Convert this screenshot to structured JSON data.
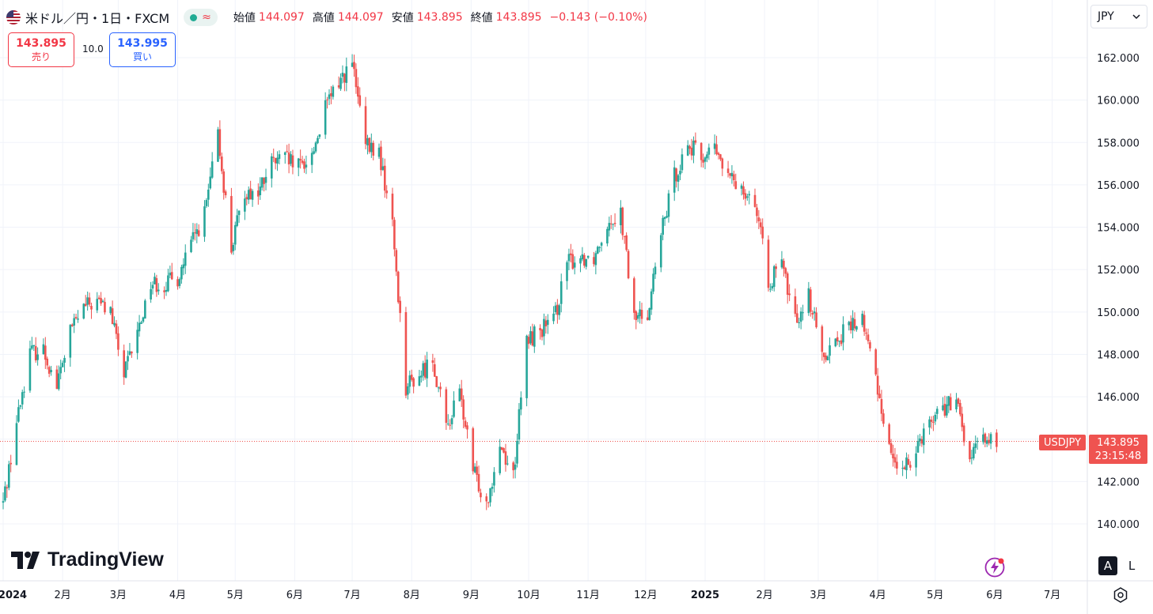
{
  "header": {
    "symbol_title": "米ドル／円・1日・FXCM",
    "live_icon": "green-dot",
    "wave_icon": "≈",
    "ohlc": {
      "open_label": "始値",
      "open": "144.097",
      "high_label": "高値",
      "high": "144.097",
      "low_label": "安値",
      "low": "143.895",
      "close_label": "終値",
      "close": "143.895",
      "change": "−0.143 (−0.10%)"
    }
  },
  "trade": {
    "sell_price": "143.895",
    "sell_label": "売り",
    "spread": "10.0",
    "buy_price": "143.995",
    "buy_label": "買い"
  },
  "currency_select": {
    "value": "JPY"
  },
  "last_price_tag": {
    "symbol": "USDJPY",
    "price": "143.895",
    "countdown": "23:15:48"
  },
  "branding": {
    "logo_text": "TradingView"
  },
  "controls": {
    "auto_scale": "A",
    "log_scale": "L"
  },
  "colors": {
    "up": "#26a69a",
    "down": "#ef5350",
    "grid": "#f0f3fa",
    "text": "#131722"
  },
  "chart_data": {
    "type": "candlestick",
    "y_ticks": [
      "162.000",
      "160.000",
      "158.000",
      "156.000",
      "154.000",
      "152.000",
      "150.000",
      "148.000",
      "146.000",
      "144.000",
      "142.000",
      "140.000"
    ],
    "y_range": [
      139.0,
      163.2
    ],
    "x_ticks": [
      {
        "label": "2024",
        "bold": true
      },
      {
        "label": "2月"
      },
      {
        "label": "3月"
      },
      {
        "label": "4月"
      },
      {
        "label": "5月"
      },
      {
        "label": "6月"
      },
      {
        "label": "7月"
      },
      {
        "label": "8月"
      },
      {
        "label": "9月"
      },
      {
        "label": "10月"
      },
      {
        "label": "11月"
      },
      {
        "label": "12月"
      },
      {
        "label": "2025",
        "bold": true
      },
      {
        "label": "2月"
      },
      {
        "label": "3月"
      },
      {
        "label": "4月"
      },
      {
        "label": "5月"
      },
      {
        "label": "6月"
      },
      {
        "label": "7月"
      }
    ],
    "close_series": [
      {
        "date": "2024-01-01",
        "close": 141.0
      },
      {
        "date": "2024-01-08",
        "close": 144.8
      },
      {
        "date": "2024-01-15",
        "close": 148.1
      },
      {
        "date": "2024-01-22",
        "close": 148.2
      },
      {
        "date": "2024-01-29",
        "close": 146.5
      },
      {
        "date": "2024-02-05",
        "close": 149.1
      },
      {
        "date": "2024-02-12",
        "close": 150.2
      },
      {
        "date": "2024-02-19",
        "close": 150.5
      },
      {
        "date": "2024-02-26",
        "close": 150.0
      },
      {
        "date": "2024-03-04",
        "close": 147.0
      },
      {
        "date": "2024-03-11",
        "close": 149.0
      },
      {
        "date": "2024-03-18",
        "close": 151.4
      },
      {
        "date": "2024-03-25",
        "close": 151.3
      },
      {
        "date": "2024-04-01",
        "close": 151.6
      },
      {
        "date": "2024-04-08",
        "close": 153.2
      },
      {
        "date": "2024-04-15",
        "close": 154.6
      },
      {
        "date": "2024-04-22",
        "close": 158.3
      },
      {
        "date": "2024-04-29",
        "close": 153.0
      },
      {
        "date": "2024-05-06",
        "close": 155.7
      },
      {
        "date": "2024-05-13",
        "close": 155.6
      },
      {
        "date": "2024-05-20",
        "close": 157.0
      },
      {
        "date": "2024-05-27",
        "close": 157.2
      },
      {
        "date": "2024-06-03",
        "close": 156.8
      },
      {
        "date": "2024-06-10",
        "close": 157.4
      },
      {
        "date": "2024-06-17",
        "close": 159.6
      },
      {
        "date": "2024-06-24",
        "close": 160.9
      },
      {
        "date": "2024-07-01",
        "close": 161.7
      },
      {
        "date": "2024-07-08",
        "close": 157.8
      },
      {
        "date": "2024-07-15",
        "close": 157.5
      },
      {
        "date": "2024-07-22",
        "close": 154.1
      },
      {
        "date": "2024-07-29",
        "close": 146.5
      },
      {
        "date": "2024-08-05",
        "close": 147.0
      },
      {
        "date": "2024-08-12",
        "close": 147.8
      },
      {
        "date": "2024-08-19",
        "close": 144.5
      },
      {
        "date": "2024-08-26",
        "close": 146.2
      },
      {
        "date": "2024-09-02",
        "close": 142.5
      },
      {
        "date": "2024-09-09",
        "close": 141.0
      },
      {
        "date": "2024-09-16",
        "close": 143.8
      },
      {
        "date": "2024-09-23",
        "close": 142.3
      },
      {
        "date": "2024-09-30",
        "close": 148.6
      },
      {
        "date": "2024-10-07",
        "close": 149.2
      },
      {
        "date": "2024-10-14",
        "close": 149.5
      },
      {
        "date": "2024-10-21",
        "close": 152.3
      },
      {
        "date": "2024-10-28",
        "close": 152.6
      },
      {
        "date": "2024-11-04",
        "close": 152.6
      },
      {
        "date": "2024-11-11",
        "close": 154.3
      },
      {
        "date": "2024-11-18",
        "close": 154.7
      },
      {
        "date": "2024-11-25",
        "close": 149.7
      },
      {
        "date": "2024-12-02",
        "close": 150.0
      },
      {
        "date": "2024-12-09",
        "close": 153.6
      },
      {
        "date": "2024-12-16",
        "close": 156.4
      },
      {
        "date": "2024-12-23",
        "close": 157.9
      },
      {
        "date": "2024-12-30",
        "close": 157.3
      },
      {
        "date": "2025-01-06",
        "close": 157.7
      },
      {
        "date": "2025-01-13",
        "close": 156.3
      },
      {
        "date": "2025-01-20",
        "close": 156.0
      },
      {
        "date": "2025-01-27",
        "close": 155.2
      },
      {
        "date": "2025-02-03",
        "close": 151.4
      },
      {
        "date": "2025-02-10",
        "close": 152.2
      },
      {
        "date": "2025-02-17",
        "close": 149.6
      },
      {
        "date": "2025-02-24",
        "close": 150.8
      },
      {
        "date": "2025-03-03",
        "close": 148.0
      },
      {
        "date": "2025-03-10",
        "close": 148.6
      },
      {
        "date": "2025-03-17",
        "close": 149.3
      },
      {
        "date": "2025-03-24",
        "close": 149.6
      },
      {
        "date": "2025-03-31",
        "close": 146.9
      },
      {
        "date": "2025-04-07",
        "close": 143.6
      },
      {
        "date": "2025-04-14",
        "close": 142.3
      },
      {
        "date": "2025-04-21",
        "close": 143.7
      },
      {
        "date": "2025-04-28",
        "close": 144.9
      },
      {
        "date": "2025-05-05",
        "close": 145.5
      },
      {
        "date": "2025-05-12",
        "close": 145.7
      },
      {
        "date": "2025-05-19",
        "close": 143.0
      },
      {
        "date": "2025-05-26",
        "close": 144.1
      },
      {
        "date": "2025-06-02",
        "close": 143.9
      }
    ],
    "last_price": 143.895,
    "grid": true
  }
}
